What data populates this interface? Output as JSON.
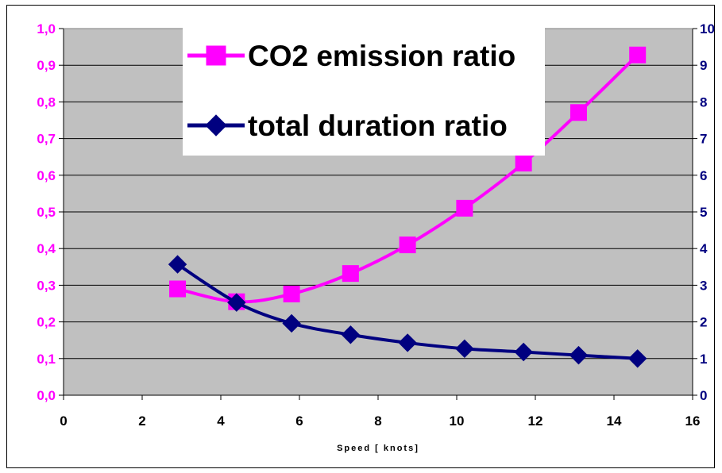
{
  "chart_data": {
    "type": "line",
    "title": "",
    "xlabel": "Speed  [ knots]",
    "ylabel": "",
    "xlim": [
      0,
      16
    ],
    "ylim_left": [
      0,
      1.0
    ],
    "ylim_right": [
      0,
      10
    ],
    "x_ticks": [
      "0",
      "2",
      "4",
      "6",
      "8",
      "10",
      "12",
      "14",
      "16"
    ],
    "y_left_ticks": [
      "0,0",
      "0,1",
      "0,2",
      "0,3",
      "0,4",
      "0,5",
      "0,6",
      "0,7",
      "0,8",
      "0,9",
      "1,0"
    ],
    "y_right_ticks": [
      "0",
      "1",
      "2",
      "3",
      "4",
      "5",
      "6",
      "7",
      "8",
      "9",
      "10"
    ],
    "grid": true,
    "legend_position": "top-center",
    "colors": {
      "plot_background": "#c0c0c0",
      "left_axis_text": "#ff00ff",
      "right_axis_text": "#000080",
      "co2_series": "#ff00ff",
      "duration_series": "#000080"
    },
    "series": [
      {
        "name": "CO2 emission ratio",
        "axis": "left",
        "marker": "square",
        "x": [
          2.9,
          4.4,
          5.8,
          7.3,
          8.75,
          10.2,
          11.7,
          13.1,
          14.6
        ],
        "y": [
          0.29,
          0.255,
          0.276,
          0.332,
          0.41,
          0.51,
          0.633,
          0.771,
          0.928
        ]
      },
      {
        "name": "total duration ratio",
        "axis": "right",
        "marker": "diamond",
        "x": [
          2.9,
          4.4,
          5.8,
          7.3,
          8.75,
          10.2,
          11.7,
          13.1,
          14.6
        ],
        "y": [
          3.57,
          2.53,
          1.96,
          1.65,
          1.43,
          1.27,
          1.18,
          1.09,
          1.0
        ]
      }
    ]
  }
}
